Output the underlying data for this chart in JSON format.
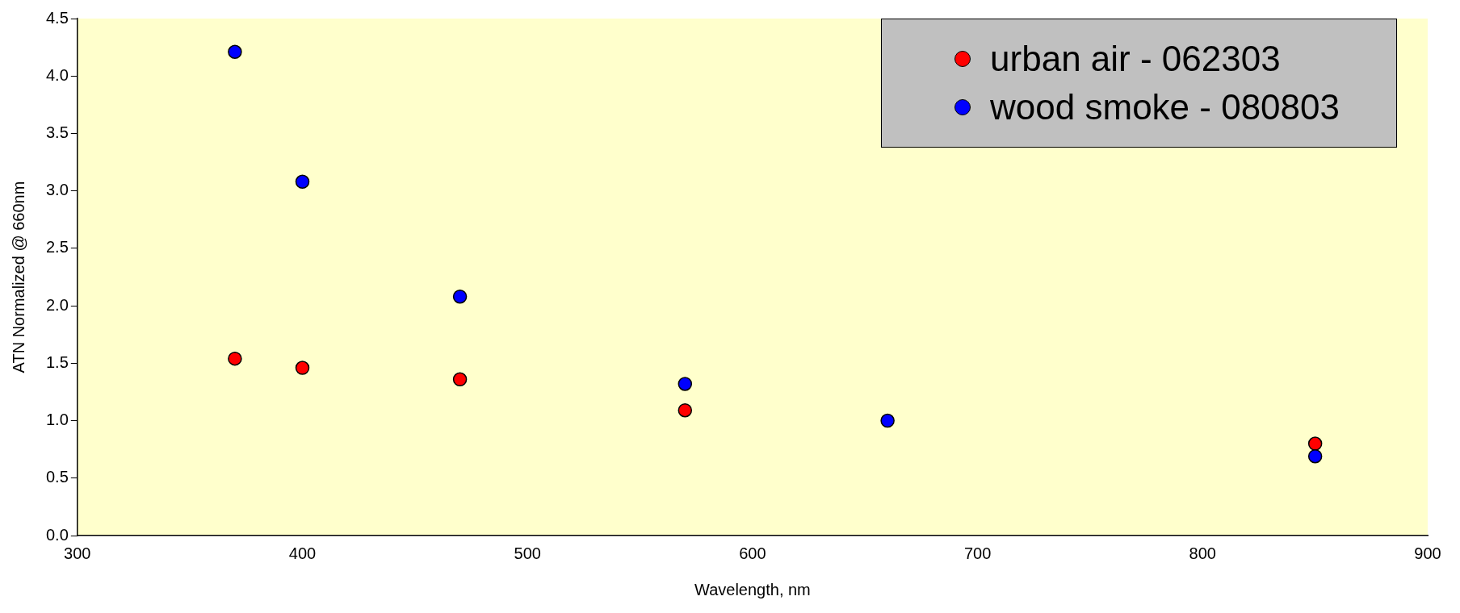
{
  "chart_data": {
    "type": "scatter",
    "xlabel": "Wavelength, nm",
    "ylabel": "ATN Normalized @ 660nm",
    "x": [
      370,
      400,
      470,
      570,
      660,
      850
    ],
    "series": [
      {
        "name": "urban air - 062303",
        "color": "#ff0000",
        "values": [
          1.54,
          1.46,
          1.36,
          1.09,
          null,
          0.8
        ]
      },
      {
        "name": "wood smoke - 080803",
        "color": "#0000ff",
        "values": [
          4.21,
          3.08,
          2.08,
          1.32,
          1.0,
          0.69
        ]
      }
    ],
    "xlim": [
      300,
      900
    ],
    "xticks": [
      300,
      400,
      500,
      600,
      700,
      800,
      900
    ],
    "ylim": [
      0,
      4.5
    ],
    "yticks": [
      {
        "value": 0,
        "label": "0.0"
      },
      {
        "value": 0.5,
        "label": "0.5"
      },
      {
        "value": 1,
        "label": "1.0"
      },
      {
        "value": 1.5,
        "label": "1.5"
      },
      {
        "value": 2,
        "label": "2.0"
      },
      {
        "value": 2.5,
        "label": "2.5"
      },
      {
        "value": 3,
        "label": "3.0"
      },
      {
        "value": 3.5,
        "label": "3.5"
      },
      {
        "value": 4,
        "label": "4.0"
      },
      {
        "value": 4.5,
        "label": "4.5"
      }
    ],
    "legend": "top right",
    "marker": "circle",
    "grid": false
  }
}
